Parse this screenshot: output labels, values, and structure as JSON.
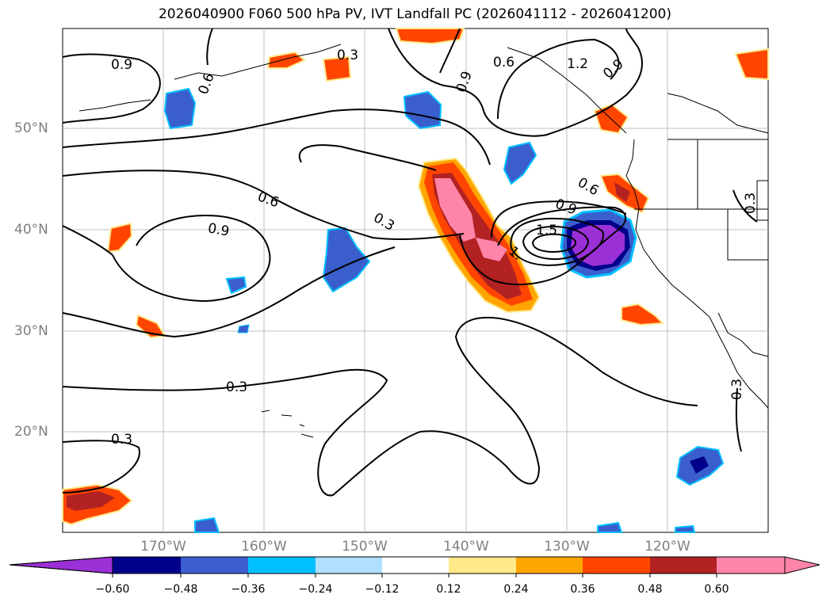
{
  "title": "2026040900 F060 500 hPa PV, IVT Landfall PC (2026041112 - 2026041200)",
  "lat_labels": [
    "50°N",
    "40°N",
    "30°N",
    "20°N"
  ],
  "lon_labels": [
    "170°W",
    "160°W",
    "150°W",
    "140°W",
    "130°W",
    "120°W"
  ],
  "contour_labels": [
    "0.9",
    "0.6",
    "0.3",
    "0.6",
    "1.2",
    "0.9",
    "0.9",
    "0.6",
    "0.9",
    "0.9",
    "0.6",
    "0.3",
    "1.5",
    "1.",
    "0.3",
    "0.3",
    "0.3",
    "0.3"
  ],
  "colorbar": {
    "ticks": [
      "−0.60",
      "−0.48",
      "−0.36",
      "−0.24",
      "−0.12",
      "0.12",
      "0.24",
      "0.36",
      "0.48",
      "0.60"
    ],
    "colors": [
      "#9b30d6",
      "#00008b",
      "#3a5fcd",
      "#00bfff",
      "#b0e0ff",
      "#ffffff",
      "#ffe98a",
      "#ffa500",
      "#ff4500",
      "#b22222",
      "#ff85a8",
      "#ff85a8"
    ]
  }
}
